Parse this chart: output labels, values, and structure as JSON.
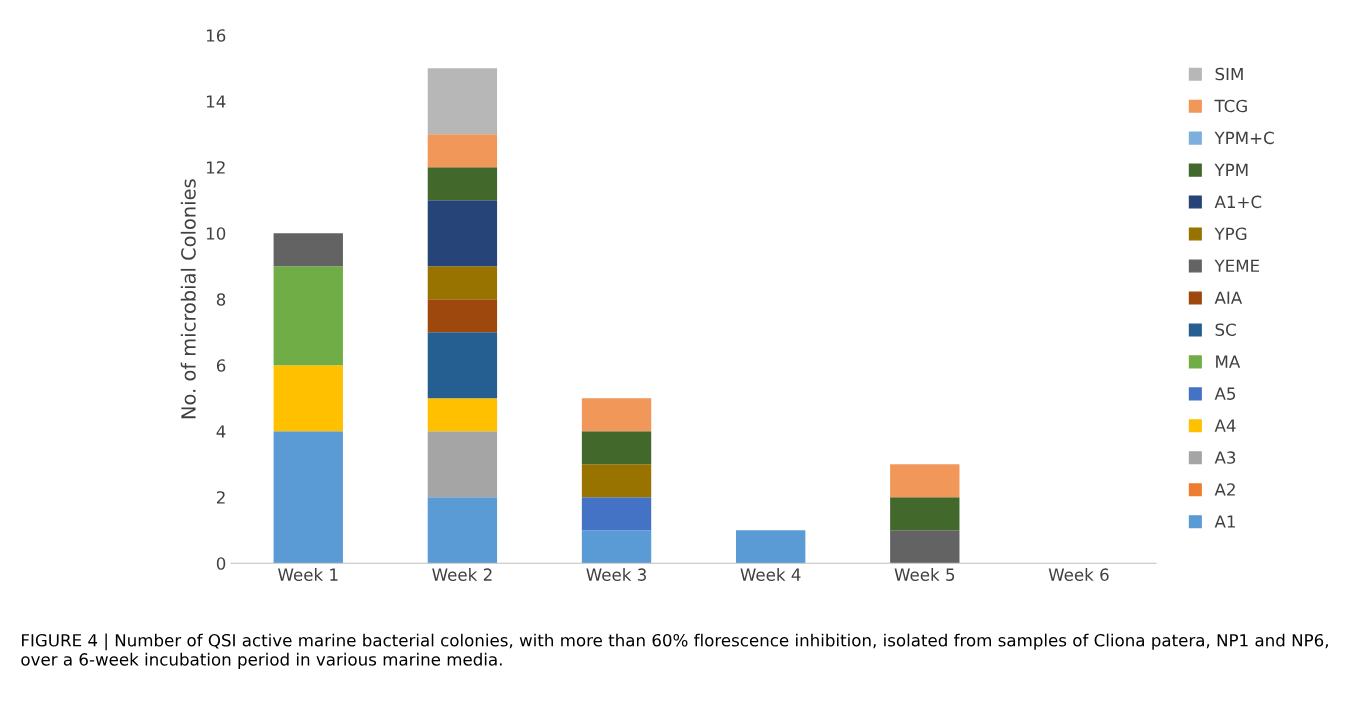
{
  "chart_data": {
    "type": "bar",
    "stacked": true,
    "ylabel": "No. of microbial Colonies",
    "categories": [
      "Week 1",
      "Week 2",
      "Week 3",
      "Week 4",
      "Week 5",
      "Week 6"
    ],
    "ylim": [
      0,
      16
    ],
    "yticks": [
      0,
      2,
      4,
      6,
      8,
      10,
      12,
      14,
      16
    ],
    "grid": false,
    "legend": "right",
    "series": [
      {
        "name": "A1",
        "color": "#5b9bd5",
        "values": [
          4,
          2,
          1,
          1,
          null,
          null
        ]
      },
      {
        "name": "A2",
        "color": "#ed7d31",
        "values": [
          null,
          null,
          null,
          null,
          null,
          null
        ]
      },
      {
        "name": "A3",
        "color": "#a5a5a5",
        "values": [
          null,
          2,
          null,
          null,
          null,
          null
        ]
      },
      {
        "name": "A4",
        "color": "#ffc000",
        "values": [
          2,
          1,
          null,
          null,
          null,
          null
        ]
      },
      {
        "name": "A5",
        "color": "#4472c4",
        "values": [
          null,
          null,
          1,
          null,
          null,
          null
        ]
      },
      {
        "name": "MA",
        "color": "#70ad47",
        "values": [
          3,
          null,
          null,
          null,
          null,
          null
        ]
      },
      {
        "name": "SC",
        "color": "#255e91",
        "values": [
          null,
          2,
          null,
          null,
          null,
          null
        ]
      },
      {
        "name": "AIA",
        "color": "#9e480e",
        "values": [
          null,
          1,
          null,
          null,
          null,
          null
        ]
      },
      {
        "name": "YEME",
        "color": "#636363",
        "values": [
          1,
          null,
          null,
          null,
          1,
          null
        ]
      },
      {
        "name": "YPG",
        "color": "#997300",
        "values": [
          null,
          1,
          1,
          null,
          null,
          null
        ]
      },
      {
        "name": "A1+C",
        "color": "#264478",
        "values": [
          null,
          2,
          null,
          null,
          null,
          null
        ]
      },
      {
        "name": "YPM",
        "color": "#43682b",
        "values": [
          null,
          1,
          1,
          null,
          1,
          null
        ]
      },
      {
        "name": "YPM+C",
        "color": "#7cafdd",
        "values": [
          null,
          null,
          null,
          null,
          null,
          null
        ]
      },
      {
        "name": "TCG",
        "color": "#f1975a",
        "values": [
          null,
          1,
          1,
          null,
          1,
          null
        ]
      },
      {
        "name": "SIM",
        "color": "#b7b7b7",
        "values": [
          null,
          2,
          null,
          null,
          null,
          null
        ]
      }
    ],
    "annotations": [
      "FIGURE 4 | Number of QSI active marine bacterial colonies, with more than 60% florescence inhibition, isolated from samples of Cliona patera, NP1 and NP6, over a 6-week incubation period in various marine media."
    ]
  }
}
